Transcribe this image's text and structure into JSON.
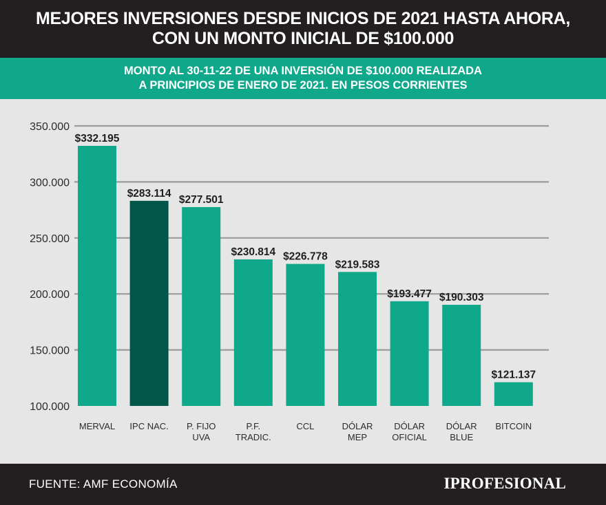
{
  "header": {
    "title_line1": "MEJORES INVERSIONES DESDE INICIOS DE 2021 HASTA AHORA,",
    "title_line2": "CON UN MONTO INICIAL DE $100.000"
  },
  "subheader": {
    "line1": "MONTO AL 30-11-22 DE UNA INVERSIÓN DE $100.000 REALIZADA",
    "line2": "A PRINCIPIOS DE ENERO DE 2021. EN PESOS CORRIENTES"
  },
  "footer": {
    "source": "FUENTE: AMF ECONOMÍA",
    "brand": "IPROFESIONAL"
  },
  "colors": {
    "bar": "#0fa88a",
    "bar_highlight": "#00574a",
    "grid": "#9b9b9b"
  },
  "chart_data": {
    "type": "bar",
    "title": "MEJORES INVERSIONES DESDE INICIOS DE 2021 HASTA AHORA, CON UN MONTO INICIAL DE $100.000",
    "categories": [
      [
        "MERVAL"
      ],
      [
        "IPC NAC."
      ],
      [
        "P. FIJO",
        "UVA"
      ],
      [
        "P.F.",
        "TRADIC."
      ],
      [
        "CCL"
      ],
      [
        "DÓLAR",
        "MEP"
      ],
      [
        "DÓLAR",
        "OFICIAL"
      ],
      [
        "DÓLAR",
        "BLUE"
      ],
      [
        "BITCOIN"
      ]
    ],
    "values": [
      332195,
      283114,
      277501,
      230814,
      226778,
      219583,
      193477,
      190303,
      121137
    ],
    "value_labels": [
      "$332.195",
      "$283.114",
      "$277.501",
      "$230.814",
      "$226.778",
      "$219.583",
      "$193.477",
      "$190.303",
      "$121.137"
    ],
    "highlight_index": 1,
    "yticks": [
      100000,
      150000,
      200000,
      250000,
      300000,
      350000
    ],
    "ytick_labels": [
      "100.000",
      "150.000",
      "200.000",
      "250.000",
      "300.000",
      "350.000"
    ],
    "ylim": [
      100000,
      350000
    ],
    "grid": true,
    "xlabel": "",
    "ylabel": ""
  }
}
